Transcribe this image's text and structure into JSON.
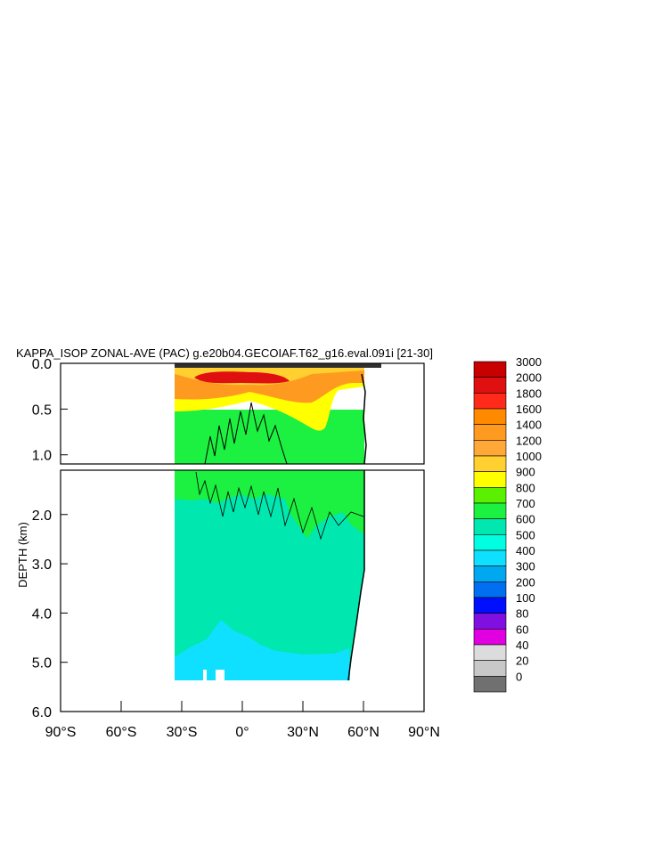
{
  "chart_data": {
    "type": "heatmap",
    "title": "KAPPA_ISOP ZONAL-AVE (PAC) g.e20b04.GECOIAF.T62_g16.eval.091i [21-30]",
    "ylabel": "DEPTH (km)",
    "xlabel": "",
    "x_ticks": [
      {
        "value": -90,
        "label": "90°S"
      },
      {
        "value": -60,
        "label": "60°S"
      },
      {
        "value": -30,
        "label": "30°S"
      },
      {
        "value": 0,
        "label": "0°"
      },
      {
        "value": 30,
        "label": "30°N"
      },
      {
        "value": 60,
        "label": "60°N"
      },
      {
        "value": 90,
        "label": "90°N"
      }
    ],
    "xlim": [
      -90,
      90
    ],
    "ylim_upper_panel": [
      0,
      1.1
    ],
    "ylim_lower_panel": [
      1.1,
      6.0
    ],
    "y_ticks_upper": [
      {
        "value": 0.0,
        "label": "0.0"
      },
      {
        "value": 0.5,
        "label": "0.5"
      },
      {
        "value": 1.0,
        "label": "1.0"
      }
    ],
    "y_ticks_lower": [
      {
        "value": 2.0,
        "label": "2.0"
      },
      {
        "value": 3.0,
        "label": "3.0"
      },
      {
        "value": 4.0,
        "label": "4.0"
      },
      {
        "value": 5.0,
        "label": "5.0"
      },
      {
        "value": 6.0,
        "label": "6.0"
      }
    ],
    "colorbar": {
      "labels": [
        "3000",
        "2000",
        "1800",
        "1600",
        "1400",
        "1200",
        "1000",
        "900",
        "800",
        "700",
        "600",
        "500",
        "400",
        "300",
        "200",
        "100",
        "80",
        "60",
        "40",
        "20",
        "0"
      ],
      "colors": [
        "#c80000",
        "#e01010",
        "#ff2a1a",
        "#ff8a00",
        "#ff9a20",
        "#ffa838",
        "#ffd030",
        "#ffff00",
        "#5af000",
        "#1cf040",
        "#00e8b0",
        "#00ffe0",
        "#10e0ff",
        "#00a8f0",
        "#0070f0",
        "#0010ff",
        "#8010e0",
        "#e000e0",
        "#dcdcdc",
        "#c8c8c8",
        "#707070"
      ]
    },
    "field": {
      "ocean_lon_range": [
        -35,
        62
      ],
      "upper_panel_bands": [
        {
          "depth_range": [
            0.0,
            0.08
          ],
          "value": "3000"
        },
        {
          "depth_range": [
            0.08,
            0.2
          ],
          "value": "2000"
        },
        {
          "depth_range": [
            0.2,
            0.35
          ],
          "value": "1400"
        },
        {
          "depth_range": [
            0.35,
            0.5
          ],
          "value": "900"
        },
        {
          "depth_range": [
            0.5,
            1.1
          ],
          "value": "700"
        }
      ],
      "lower_panel_bands": [
        {
          "depth_range": [
            1.1,
            1.8
          ],
          "value": "700"
        },
        {
          "depth_range": [
            1.8,
            4.6
          ],
          "value": "600"
        },
        {
          "depth_range": [
            4.6,
            5.35
          ],
          "value": "500"
        }
      ]
    }
  }
}
